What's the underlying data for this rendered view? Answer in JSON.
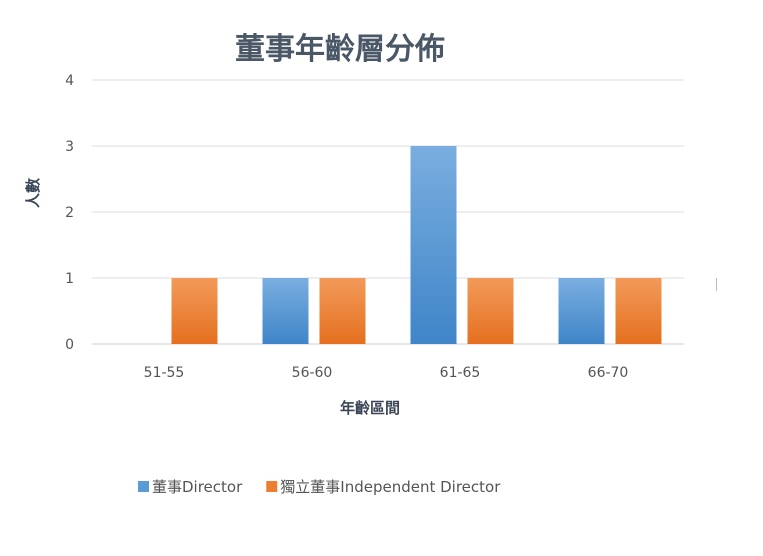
{
  "chart_data": {
    "type": "bar",
    "title": "董事年齡層分佈",
    "xlabel": "年齡區間",
    "ylabel": "人數",
    "categories": [
      "51-55",
      "56-60",
      "61-65",
      "66-70"
    ],
    "series": [
      {
        "name": "董事Director",
        "values": [
          0,
          1,
          3,
          1
        ],
        "color": "#5b9bd5"
      },
      {
        "name": "獨立董事Independent Director",
        "values": [
          1,
          1,
          1,
          1
        ],
        "color": "#ed7d31"
      }
    ],
    "ylim": [
      0,
      4
    ],
    "yticks": [
      "0",
      "1",
      "2",
      "3",
      "4"
    ],
    "grid": true,
    "legend_position": "bottom"
  }
}
